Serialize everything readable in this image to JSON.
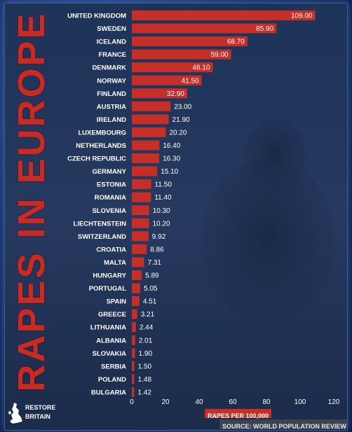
{
  "title": "RAPES IN EUROPE",
  "source": "SOURCE: WORLD POPULATION REVIEW",
  "logo": {
    "line1": "RESTORE",
    "line2": "BRITAIN"
  },
  "colors": {
    "bar": "#c62f27",
    "title": "#c82b24",
    "background": "#22375c"
  },
  "chart_data": {
    "type": "bar",
    "orientation": "horizontal",
    "categories": [
      "UNITED KINGDOM",
      "SWEDEN",
      "ICELAND",
      "FRANCE",
      "DENMARK",
      "NORWAY",
      "FINLAND",
      "AUSTRIA",
      "IRELAND",
      "LUXEMBOURG",
      "NETHERLANDS",
      "CZECH REPUBLIC",
      "GERMANY",
      "ESTONIA",
      "ROMANIA",
      "SLOVENIA",
      "LIECHTENSTEIN",
      "SWITZERLAND",
      "CROATIA",
      "MALTA",
      "HUNGARY",
      "PORTUGAL",
      "SPAIN",
      "GREECE",
      "LITHUANIA",
      "ALBANIA",
      "SLOVAKIA",
      "SERBIA",
      "POLAND",
      "BULGARIA"
    ],
    "values": [
      109.0,
      85.9,
      68.7,
      59.0,
      48.1,
      41.5,
      32.9,
      23.0,
      21.9,
      20.2,
      16.4,
      16.3,
      15.1,
      11.5,
      11.4,
      10.3,
      10.2,
      9.92,
      8.86,
      7.31,
      5.89,
      5.05,
      4.51,
      3.21,
      2.44,
      2.01,
      1.9,
      1.5,
      1.48,
      1.42
    ],
    "value_labels": [
      "109.00",
      "85.90",
      "68.70",
      "59.00",
      "48.10",
      "41.50",
      "32.90",
      "23.00",
      "21.90",
      "20.20",
      "16.40",
      "16.30",
      "15.10",
      "11.50",
      "11.40",
      "10.30",
      "10.20",
      "9.92",
      "8.86",
      "7.31",
      "5.89",
      "5.05",
      "4.51",
      "3.21",
      "2.44",
      "2.01",
      "1.90",
      "1.50",
      "1.48",
      "1.42"
    ],
    "title": "RAPES IN EUROPE",
    "xlabel": "RAPES PER 100,000",
    "xlim": [
      0,
      120
    ],
    "xticks": [
      "0",
      "20",
      "40",
      "60",
      "80",
      "100",
      "120"
    ],
    "grid": false
  }
}
